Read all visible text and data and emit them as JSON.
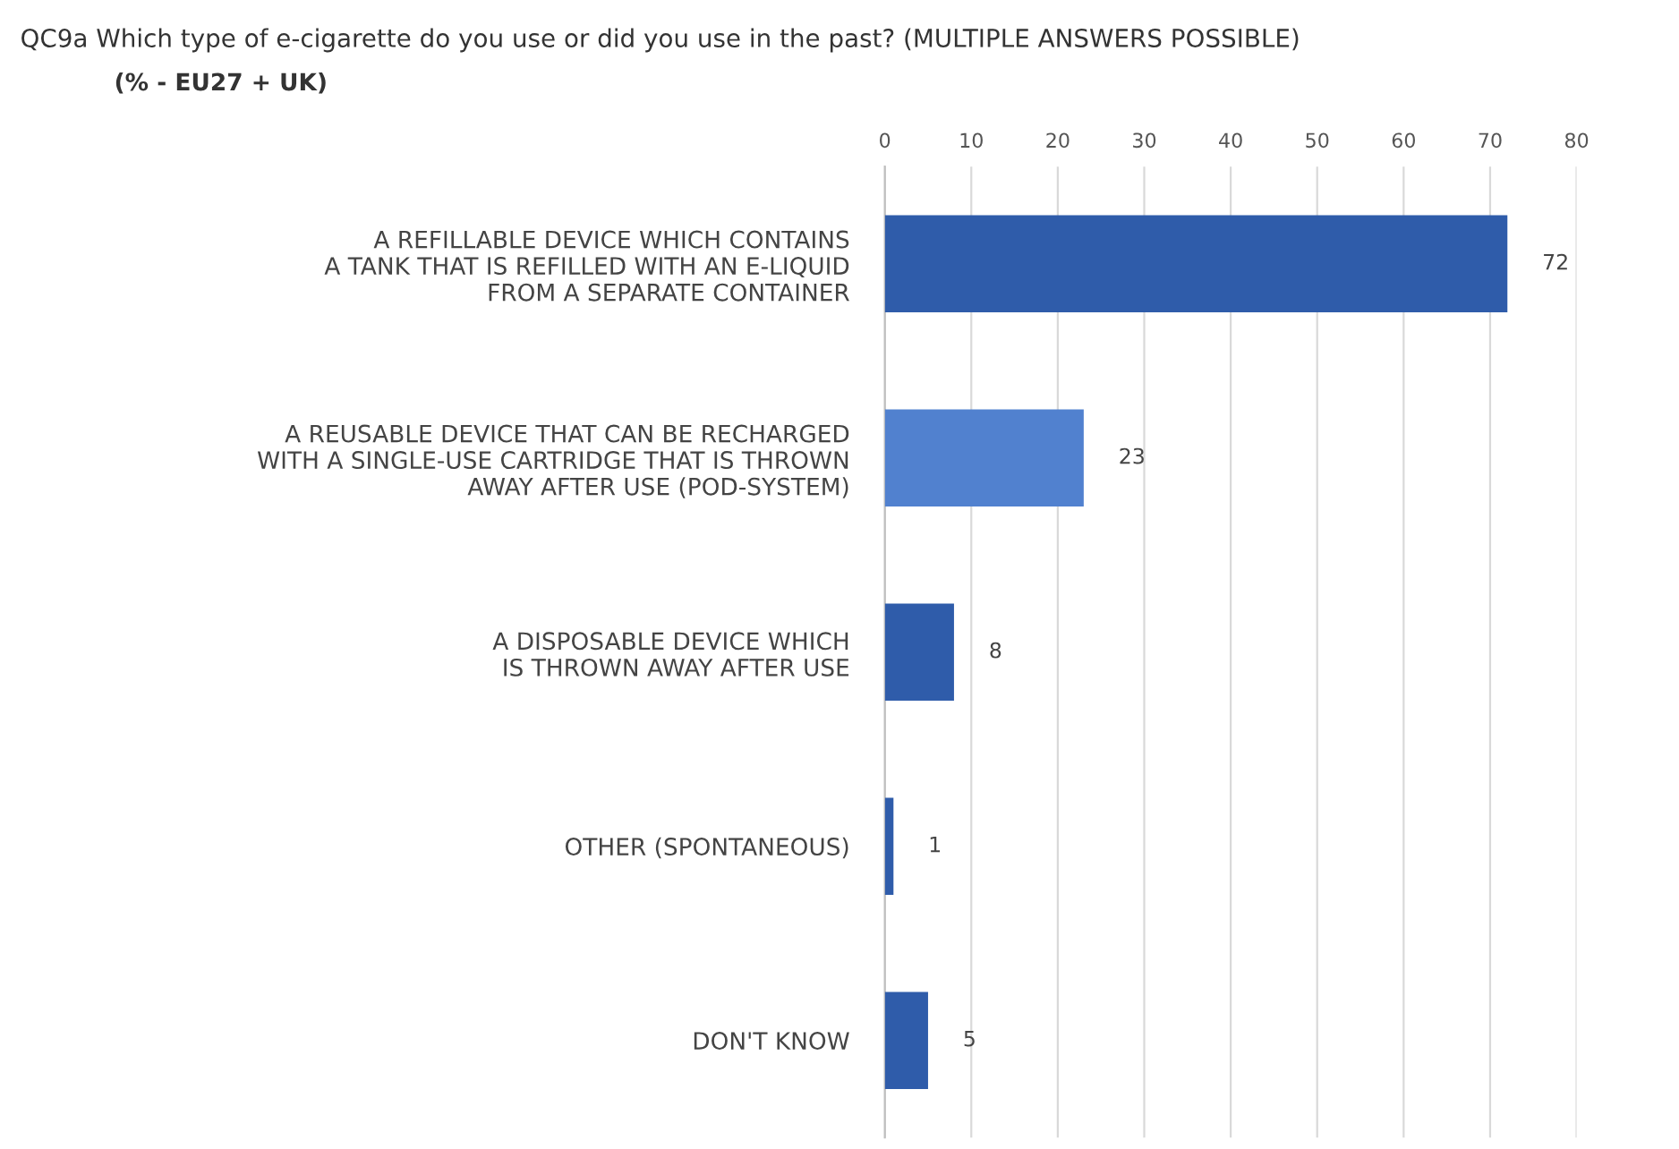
{
  "chart_data": {
    "type": "bar",
    "orientation": "horizontal",
    "title": "QC9a Which type of e-cigarette do you use or did you use in the past? (MULTIPLE ANSWERS POSSIBLE)",
    "subtitle": "(% - EU27 + UK)",
    "categories": [
      "A REFILLABLE DEVICE WHICH CONTAINS\nA TANK THAT IS REFILLED WITH AN E-LIQUID\nFROM A SEPARATE CONTAINER",
      "A REUSABLE DEVICE THAT CAN BE RECHARGED\nWITH A SINGLE-USE CARTRIDGE THAT IS THROWN\nAWAY AFTER USE (POD-SYSTEM)",
      "A DISPOSABLE DEVICE WHICH\nIS THROWN AWAY AFTER USE",
      "OTHER (SPONTANEOUS)",
      "DON'T KNOW"
    ],
    "values": [
      72,
      23,
      8,
      1,
      5
    ],
    "colors": [
      "#2f5caa",
      "#5181cf",
      "#2f5caa",
      "#2f5caa",
      "#2f5caa"
    ],
    "xlim": [
      0,
      80
    ],
    "xticks": [
      0,
      10,
      20,
      30,
      40,
      50,
      60,
      70,
      80
    ],
    "grid": "x",
    "data_labels": true
  }
}
